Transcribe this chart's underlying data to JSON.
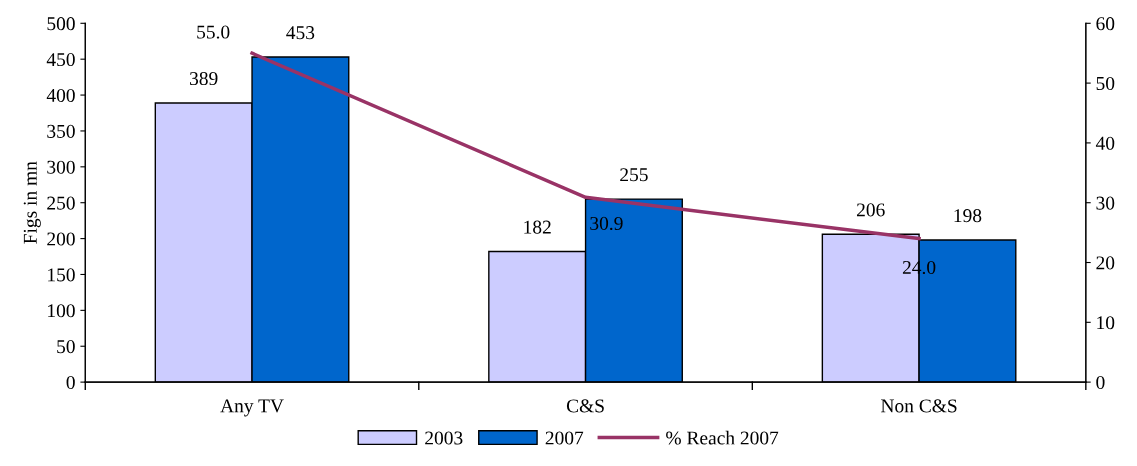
{
  "chart_data": {
    "type": "bar",
    "ylabel": "Figs in mn",
    "categories": [
      "Any TV",
      "C&S",
      "Non C&S"
    ],
    "series": [
      {
        "name": "2003",
        "color": "#ccccff",
        "values": [
          389,
          182,
          206
        ],
        "data_labels": true
      },
      {
        "name": "2007",
        "color": "#0066cc",
        "values": [
          453,
          255,
          198
        ],
        "data_labels": true
      },
      {
        "name": "% Reach 2007",
        "type": "line",
        "axis": "y2",
        "color": "#993366",
        "values": [
          55.0,
          30.9,
          24.0
        ],
        "value_labels": [
          "55.0",
          "30.9",
          "24.0"
        ],
        "marker": "none"
      }
    ],
    "ylim": [
      0,
      500
    ],
    "yticks": [
      0,
      50,
      100,
      150,
      200,
      250,
      300,
      350,
      400,
      450,
      500
    ],
    "y2lim": [
      0,
      60
    ],
    "y2ticks": [
      0,
      10,
      20,
      30,
      40,
      50,
      60
    ],
    "grid": false,
    "legend": "bottom"
  }
}
